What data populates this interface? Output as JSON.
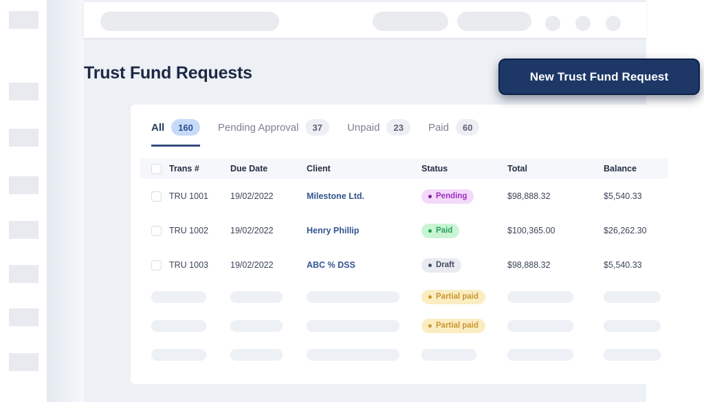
{
  "header": {
    "title": "Trust Fund Requests",
    "new_request_button_label": "New Trust Fund Request"
  },
  "tabs": [
    {
      "label": "All",
      "count": "160",
      "active": true
    },
    {
      "label": "Pending Approval",
      "count": "37",
      "active": false
    },
    {
      "label": "Unpaid",
      "count": "23",
      "active": false
    },
    {
      "label": "Paid",
      "count": "60",
      "active": false
    }
  ],
  "table": {
    "columns": [
      "Trans #",
      "Due Date",
      "Client",
      "Status",
      "Total",
      "Balance"
    ],
    "rows": [
      {
        "trans": "TRU 1001",
        "due_date": "19/02/2022",
        "client": "Milestone Ltd.",
        "status": "Pending",
        "status_key": "pending",
        "total": "$98,888.32",
        "balance": "$5,540.33"
      },
      {
        "trans": "TRU 1002",
        "due_date": "19/02/2022",
        "client": "Henry Phillip",
        "status": "Paid",
        "status_key": "paid",
        "total": "$100,365.00",
        "balance": "$26,262.30"
      },
      {
        "trans": "TRU 1003",
        "due_date": "19/02/2022",
        "client": "ABC % DSS",
        "status": "Draft",
        "status_key": "draft",
        "total": "$98,888.32",
        "balance": "$5,540.33"
      }
    ],
    "skeleton_rows": [
      {
        "status": "Partial paid",
        "status_key": "partial"
      },
      {
        "status": "Partial paid",
        "status_key": "partial"
      },
      {
        "status": null
      }
    ]
  },
  "colors": {
    "button_navy": "#1d3867",
    "active_tab_underline": "#344b7d",
    "active_tab_count_bg": "#c7dbf9",
    "pending_bg": "#f4d9fa",
    "pending_text": "#9c2fc0",
    "paid_bg": "#c8f4d4",
    "paid_text": "#27a05c",
    "draft_bg": "#e9ebf1",
    "draft_text": "#404a5f",
    "partial_paid_bg": "#fbedc2",
    "partial_paid_text": "#c9962f",
    "skeleton": "#edf0f5",
    "window_bg": "#edf0f5",
    "title_text": "#1d2943"
  }
}
